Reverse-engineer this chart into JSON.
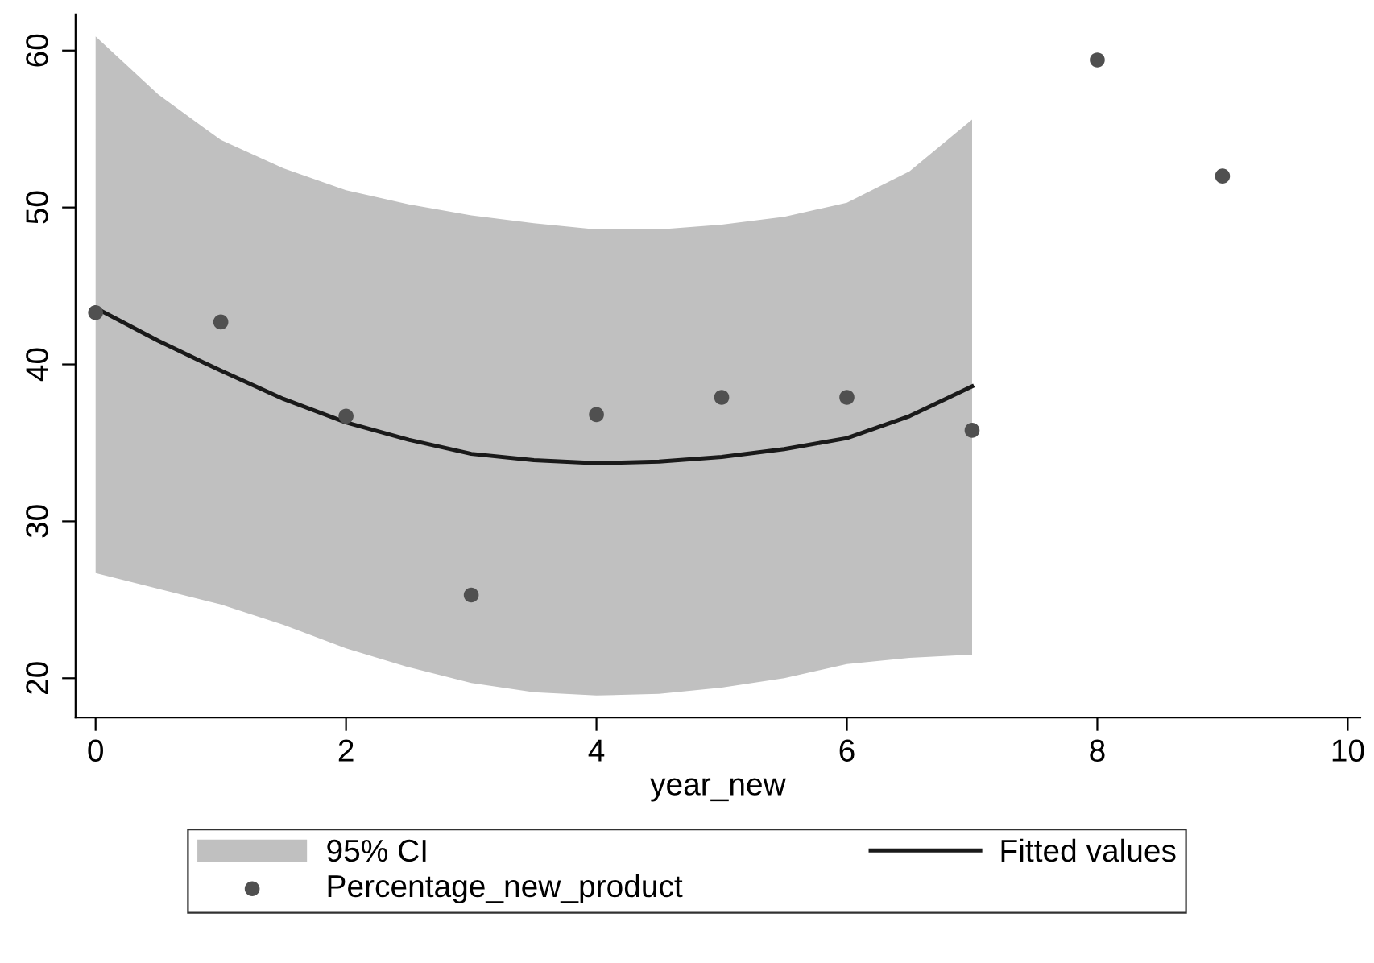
{
  "chart_data": {
    "type": "scatter",
    "xlabel": "year_new",
    "xlim": [
      -0.16,
      10.1
    ],
    "xticks": [
      0,
      2,
      4,
      6,
      8,
      10
    ],
    "ylim": [
      17.5,
      62.3
    ],
    "yticks": [
      20,
      30,
      40,
      50,
      60
    ],
    "grid": false,
    "legend": "bottom",
    "annotations": [
      "95% CI"
    ],
    "series": [
      {
        "name": "Fitted values",
        "type": "line",
        "color": "#1a1a1a",
        "marker": "none",
        "line_style": "solid",
        "x": [
          0,
          0.5,
          1,
          1.5,
          2,
          2.5,
          3,
          3.5,
          4,
          4.5,
          5,
          5.5,
          6,
          6.5,
          7
        ],
        "values": [
          43.6,
          41.5,
          39.6,
          37.8,
          36.3,
          35.2,
          34.3,
          33.9,
          33.7,
          33.8,
          34.1,
          34.6,
          35.3,
          36.7,
          38.6
        ],
        "lower": [
          26.7,
          25.7,
          24.7,
          23.4,
          21.9,
          20.7,
          19.7,
          19.1,
          18.9,
          19.0,
          19.4,
          20.0,
          20.9,
          21.3,
          21.5
        ],
        "upper": [
          60.9,
          57.2,
          54.3,
          52.5,
          51.1,
          50.2,
          49.5,
          49.0,
          48.6,
          48.6,
          48.9,
          49.4,
          50.3,
          52.3,
          55.6
        ]
      },
      {
        "name": "Percentage_new_product",
        "marker": "circle",
        "color": "#505050",
        "x": [
          0,
          1,
          2,
          3,
          4,
          5,
          6,
          7,
          8,
          9
        ],
        "values": [
          43.3,
          42.7,
          36.7,
          25.3,
          36.8,
          37.9,
          37.9,
          35.8,
          59.4,
          52.0
        ]
      }
    ]
  }
}
